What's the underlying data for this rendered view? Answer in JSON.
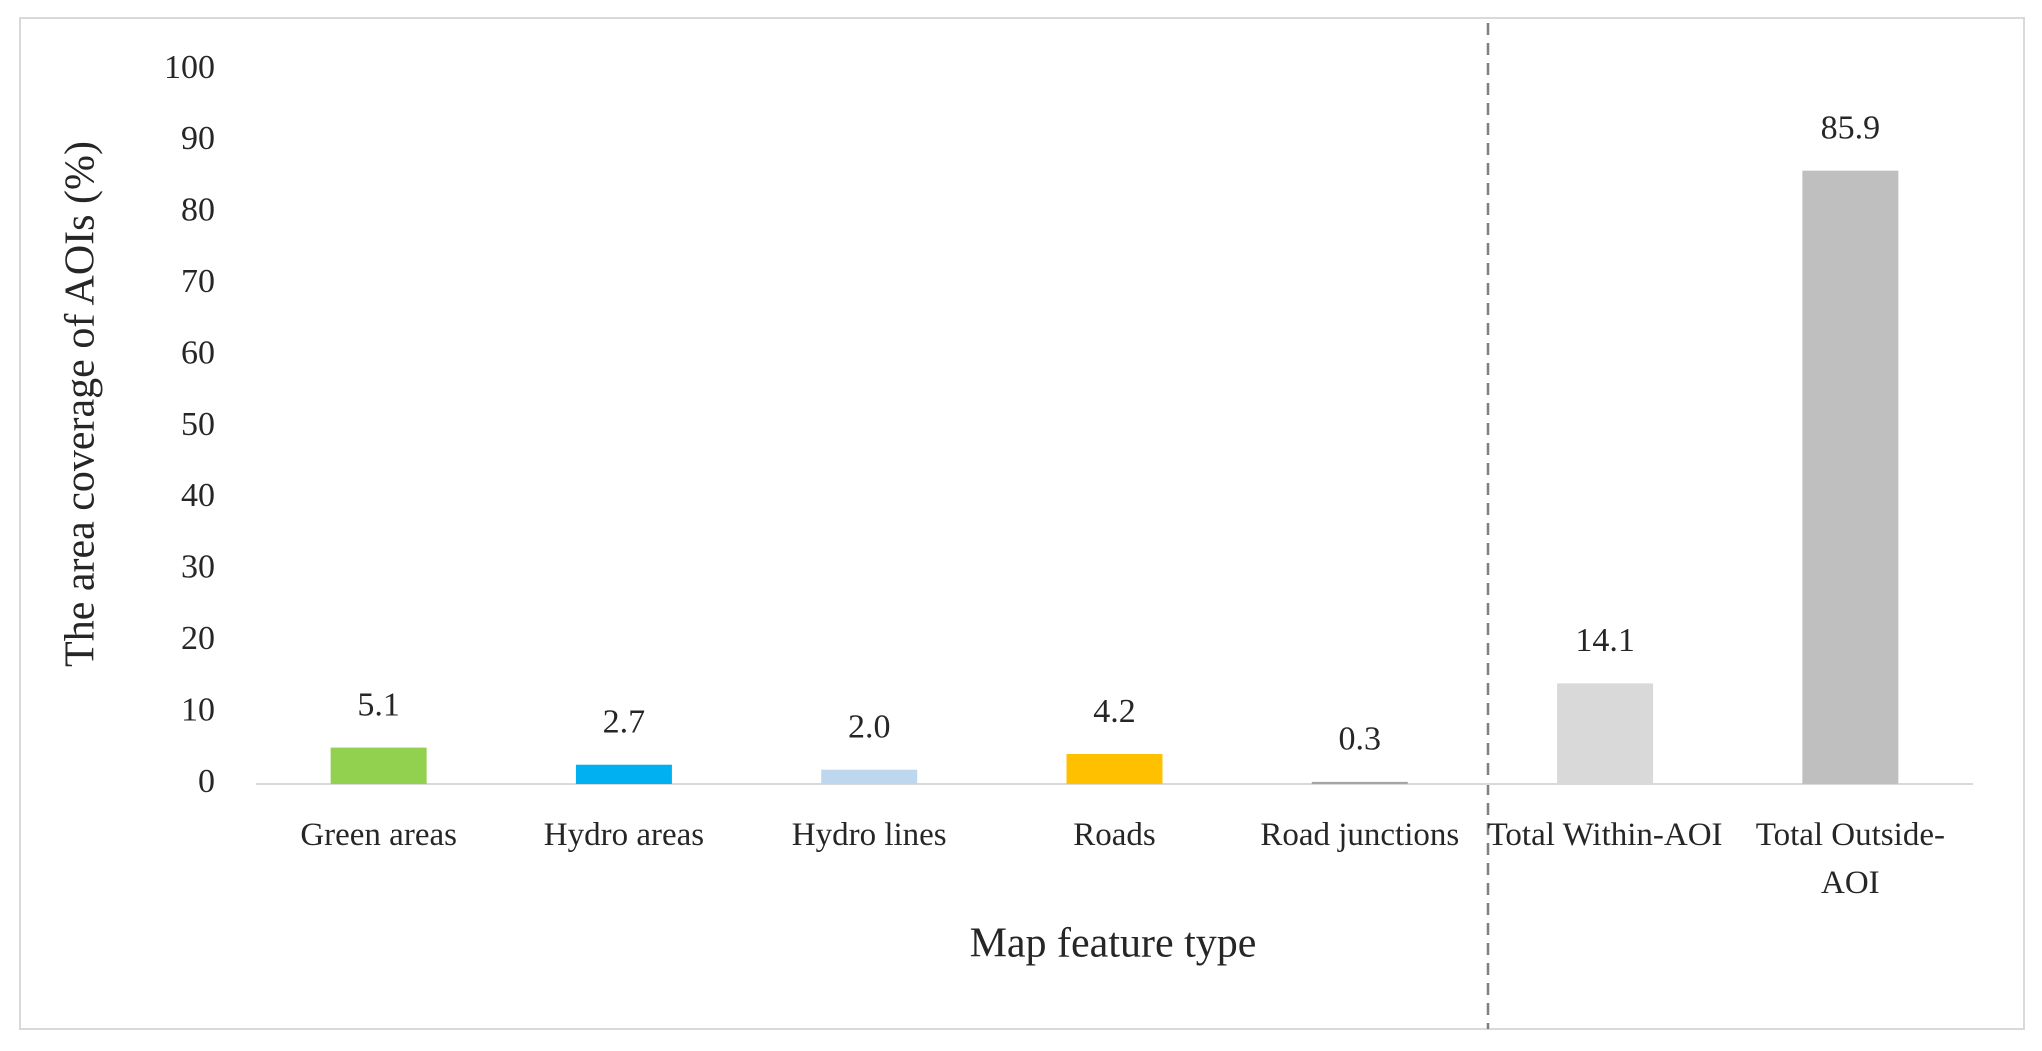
{
  "chart_data": {
    "type": "bar",
    "categories": [
      "Green areas",
      "Hydro areas",
      "Hydro lines",
      "Roads",
      "Road junctions",
      "Total Within-AOI",
      "Total Outside-AOI"
    ],
    "values": [
      5.1,
      2.7,
      2.0,
      4.2,
      0.3,
      14.1,
      85.9
    ],
    "value_labels": [
      "5.1",
      "2.7",
      "2.0",
      "4.2",
      "0.3",
      "14.1",
      "85.9"
    ],
    "colors": [
      "#92d050",
      "#00b0f0",
      "#bdd7ee",
      "#ffc000",
      "#a5a5a5",
      "#d9d9d9",
      "#bfbfbf"
    ],
    "ylim": [
      0,
      100
    ],
    "yticks": [
      0,
      10,
      20,
      30,
      40,
      50,
      60,
      70,
      80,
      90,
      100
    ],
    "x_label": "Map feature type",
    "y_label": "The area coverage of AOIs (%)",
    "grid": false
  }
}
